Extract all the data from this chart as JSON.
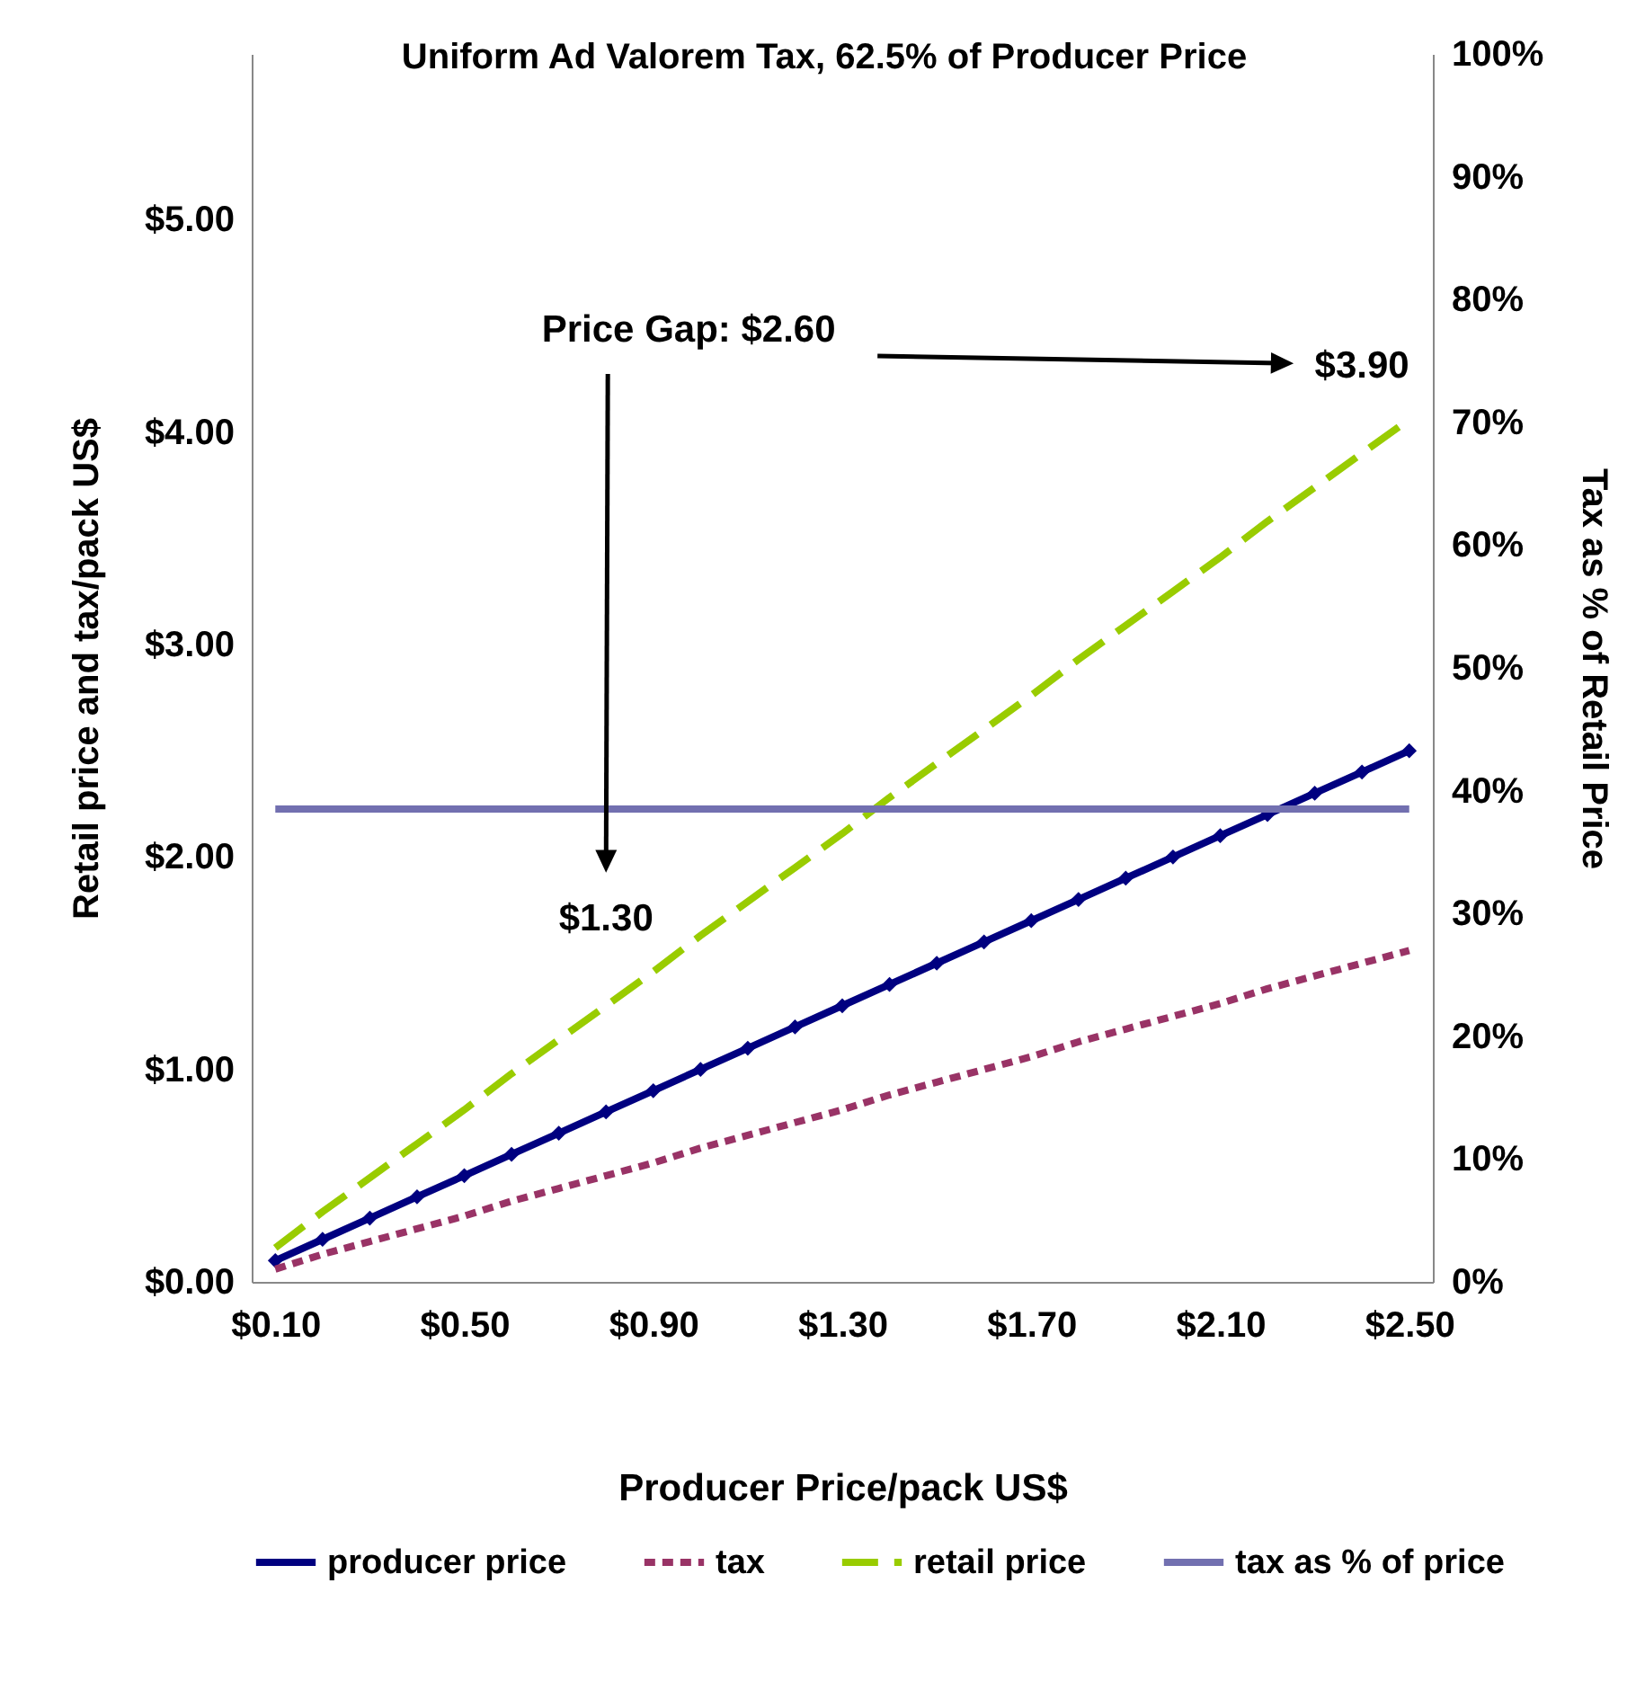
{
  "chart_data": {
    "type": "line",
    "title": "Uniform Ad Valorem Tax, 62.5% of Producer Price",
    "xlabel": "Producer Price/pack US$",
    "ylabel": "Retail price and tax/pack US$",
    "y2label": "Tax as % of Retail Price",
    "x": [
      0.1,
      0.2,
      0.3,
      0.4,
      0.5,
      0.6,
      0.7,
      0.8,
      0.9,
      1.0,
      1.1,
      1.2,
      1.3,
      1.4,
      1.5,
      1.6,
      1.7,
      1.8,
      1.9,
      2.0,
      2.1,
      2.2,
      2.3,
      2.4,
      2.5
    ],
    "xlim": [
      0.05,
      2.55
    ],
    "xticks": [
      {
        "value": 0.1,
        "label": "$0.10"
      },
      {
        "value": 0.5,
        "label": "$0.50"
      },
      {
        "value": 0.9,
        "label": "$0.90"
      },
      {
        "value": 1.3,
        "label": "$1.30"
      },
      {
        "value": 1.7,
        "label": "$1.70"
      },
      {
        "value": 2.1,
        "label": "$2.10"
      },
      {
        "value": 2.5,
        "label": "$2.50"
      }
    ],
    "ylim": [
      0,
      5.78
    ],
    "yticks": [
      {
        "value": 0,
        "label": "$0.00"
      },
      {
        "value": 1,
        "label": "$1.00"
      },
      {
        "value": 2,
        "label": "$2.00"
      },
      {
        "value": 3,
        "label": "$3.00"
      },
      {
        "value": 4,
        "label": "$4.00"
      },
      {
        "value": 5,
        "label": "$5.00"
      }
    ],
    "y2lim": [
      0,
      100
    ],
    "y2ticks": [
      {
        "value": 0,
        "label": "0%"
      },
      {
        "value": 10,
        "label": "10%"
      },
      {
        "value": 20,
        "label": "20%"
      },
      {
        "value": 30,
        "label": "30%"
      },
      {
        "value": 40,
        "label": "40%"
      },
      {
        "value": 50,
        "label": "50%"
      },
      {
        "value": 60,
        "label": "60%"
      },
      {
        "value": 70,
        "label": "70%"
      },
      {
        "value": 80,
        "label": "80%"
      },
      {
        "value": 90,
        "label": "90%"
      },
      {
        "value": 100,
        "label": "100%"
      }
    ],
    "series": [
      {
        "name": "producer price",
        "color": "#000080",
        "marker": "diamond",
        "line_style": "solid",
        "values": [
          0.1,
          0.2,
          0.3,
          0.4,
          0.5,
          0.6,
          0.7,
          0.8,
          0.9,
          1.0,
          1.1,
          1.2,
          1.3,
          1.4,
          1.5,
          1.6,
          1.7,
          1.8,
          1.9,
          2.0,
          2.1,
          2.2,
          2.3,
          2.4,
          2.5
        ]
      },
      {
        "name": "tax",
        "color": "#993366",
        "line_style": "dotted",
        "values": [
          0.06,
          0.13,
          0.19,
          0.25,
          0.31,
          0.38,
          0.44,
          0.5,
          0.56,
          0.63,
          0.69,
          0.75,
          0.81,
          0.88,
          0.94,
          1.0,
          1.06,
          1.13,
          1.19,
          1.25,
          1.31,
          1.38,
          1.44,
          1.5,
          1.56
        ]
      },
      {
        "name": "retail price",
        "color": "#99cc00",
        "line_style": "dashed",
        "values": [
          0.16,
          0.33,
          0.49,
          0.65,
          0.81,
          0.98,
          1.14,
          1.3,
          1.46,
          1.63,
          1.79,
          1.95,
          2.11,
          2.28,
          2.44,
          2.6,
          2.76,
          2.93,
          3.09,
          3.25,
          3.41,
          3.58,
          3.74,
          3.9,
          4.06
        ]
      },
      {
        "name": "tax as % of price",
        "color": "#7270b0",
        "line_style": "solid",
        "axis": "y2",
        "values": [
          38.5,
          38.5,
          38.5,
          38.5,
          38.5,
          38.5,
          38.5,
          38.5,
          38.5,
          38.5,
          38.5,
          38.5,
          38.5,
          38.5,
          38.5,
          38.5,
          38.5,
          38.5,
          38.5,
          38.5,
          38.5,
          38.5,
          38.5,
          38.5,
          38.5
        ]
      }
    ],
    "annotations": [
      "Price Gap:  $2.60",
      {
        "text": "$3.90",
        "x": 2.4,
        "y": 3.9
      },
      {
        "text": "$1.30",
        "x": 0.8,
        "y": 1.3
      }
    ],
    "legend": "bottom"
  }
}
